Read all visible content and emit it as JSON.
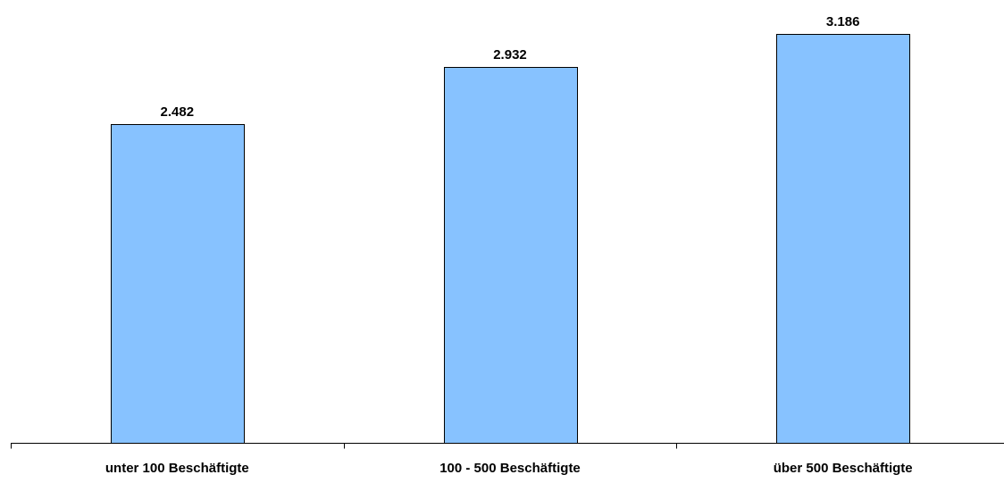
{
  "chart_data": {
    "type": "bar",
    "title": "",
    "xlabel": "",
    "ylabel": "",
    "categories": [
      "unter 100 Beschäftigte",
      "100 - 500 Beschäftigte",
      "über 500 Beschäftigte"
    ],
    "values": [
      2482,
      2932,
      3186
    ],
    "value_labels": [
      "2.482",
      "2.932",
      "3.186"
    ],
    "ylim": [
      0,
      3450
    ],
    "grid": false,
    "legend": "none",
    "bar_color": "#87c2ff",
    "bar_edge_color": "#000000"
  }
}
